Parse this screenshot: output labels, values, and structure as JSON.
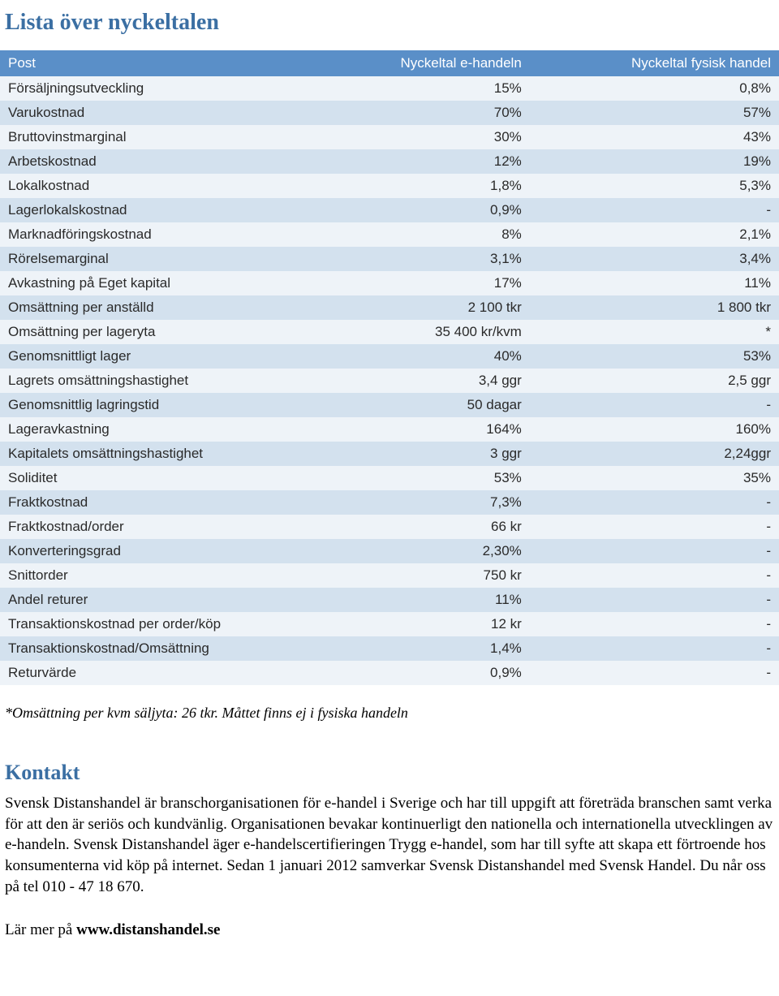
{
  "title": "Lista över nyckeltalen",
  "table": {
    "header": {
      "post": "Post",
      "eh": "Nyckeltal e-handeln",
      "fh": "Nyckeltal fysisk handel"
    },
    "rows": [
      {
        "post": "Försäljningsutveckling",
        "eh": "15%",
        "fh": "0,8%"
      },
      {
        "post": "Varukostnad",
        "eh": "70%",
        "fh": "57%"
      },
      {
        "post": "Bruttovinstmarginal",
        "eh": "30%",
        "fh": "43%"
      },
      {
        "post": "Arbetskostnad",
        "eh": "12%",
        "fh": "19%"
      },
      {
        "post": "Lokalkostnad",
        "eh": "1,8%",
        "fh": "5,3%"
      },
      {
        "post": "Lagerlokalskostnad",
        "eh": "0,9%",
        "fh": "-"
      },
      {
        "post": "Marknadföringskostnad",
        "eh": "8%",
        "fh": "2,1%"
      },
      {
        "post": "Rörelsemarginal",
        "eh": "3,1%",
        "fh": "3,4%"
      },
      {
        "post": "Avkastning på Eget kapital",
        "eh": "17%",
        "fh": "11%"
      },
      {
        "post": "Omsättning per anställd",
        "eh": "2 100 tkr",
        "fh": "1 800 tkr"
      },
      {
        "post": "Omsättning per lageryta",
        "eh": "35 400 kr/kvm",
        "fh": "*"
      },
      {
        "post": "Genomsnittligt lager",
        "eh": "40%",
        "fh": "53%"
      },
      {
        "post": "Lagrets omsättningshastighet",
        "eh": "3,4 ggr",
        "fh": "2,5 ggr"
      },
      {
        "post": "Genomsnittlig lagringstid",
        "eh": "50 dagar",
        "fh": "-"
      },
      {
        "post": "Lageravkastning",
        "eh": "164%",
        "fh": "160%"
      },
      {
        "post": "Kapitalets omsättningshastighet",
        "eh": "3 ggr",
        "fh": "2,24ggr"
      },
      {
        "post": "Soliditet",
        "eh": "53%",
        "fh": "35%"
      },
      {
        "post": "Fraktkostnad",
        "eh": "7,3%",
        "fh": "-"
      },
      {
        "post": "Fraktkostnad/order",
        "eh": "66 kr",
        "fh": "-"
      },
      {
        "post": "Konverteringsgrad",
        "eh": "2,30%",
        "fh": "-"
      },
      {
        "post": "Snittorder",
        "eh": "750 kr",
        "fh": "-"
      },
      {
        "post": "Andel returer",
        "eh": "11%",
        "fh": "-"
      },
      {
        "post": "Transaktionskostnad per order/köp",
        "eh": "12 kr",
        "fh": "-"
      },
      {
        "post": "Transaktionskostnad/Omsättning",
        "eh": "1,4%",
        "fh": "-"
      },
      {
        "post": "Returvärde",
        "eh": "0,9%",
        "fh": "-"
      }
    ]
  },
  "footnote": "*Omsättning per kvm säljyta: 26 tkr. Måttet finns ej i fysiska handeln",
  "contact": {
    "heading": "Kontakt",
    "body": "Svensk Distanshandel är branschorganisationen för e-handel i Sverige och har till uppgift att företräda branschen samt verka för att den är seriös och kundvänlig. Organisationen bevakar kontinuerligt den nationella och internationella utvecklingen av e-handeln. Svensk Distanshandel äger e-handelscertifieringen Trygg e-handel, som har till syfte att skapa ett förtroende hos konsumenterna vid köp på internet. Sedan 1 januari 2012 samverkar Svensk Distanshandel med Svensk Handel. Du når oss på tel 010 - 47 18 670."
  },
  "learn_more": {
    "prefix": "Lär mer på ",
    "url": "www.distanshandel.se"
  }
}
